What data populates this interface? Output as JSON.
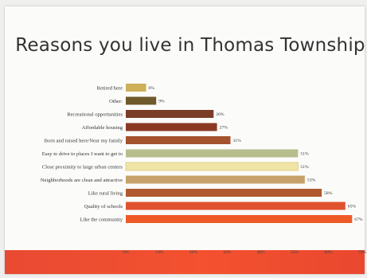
{
  "slide": {
    "title": "Reasons you live in Thomas Township"
  },
  "chart_data": {
    "type": "bar",
    "orientation": "horizontal",
    "title": "Reasons you live in Thomas Township",
    "xlabel": "",
    "ylabel": "",
    "xlim": [
      0,
      70
    ],
    "xticks": [
      "0%",
      "10%",
      "20%",
      "30%",
      "40%",
      "50%",
      "60%",
      "70%"
    ],
    "grid": false,
    "categories": [
      "Retired here",
      "Other:",
      "Recreational opportunities",
      "Affordable housing",
      "Born and raised here/Near my family",
      "Easy to drive to places I want to get to",
      "Close proximity to large urban centers",
      "Neighborhoods are clean and attractive",
      "Like rural living",
      "Quality of schools",
      "Like the community"
    ],
    "values": [
      6,
      9,
      26,
      27,
      31,
      51,
      51,
      53,
      58,
      65,
      67
    ],
    "value_labels": [
      "6%",
      "9%",
      "26%",
      "27%",
      "31%",
      "51%",
      "51%",
      "53%",
      "58%",
      "65%",
      "67%"
    ],
    "colors": [
      "#cdb057",
      "#6e5a2a",
      "#7a3d28",
      "#8a3a22",
      "#a4532e",
      "#b8bd8e",
      "#f0e4a6",
      "#c6a26a",
      "#b0592e",
      "#e0532f",
      "#ee5a26"
    ]
  }
}
